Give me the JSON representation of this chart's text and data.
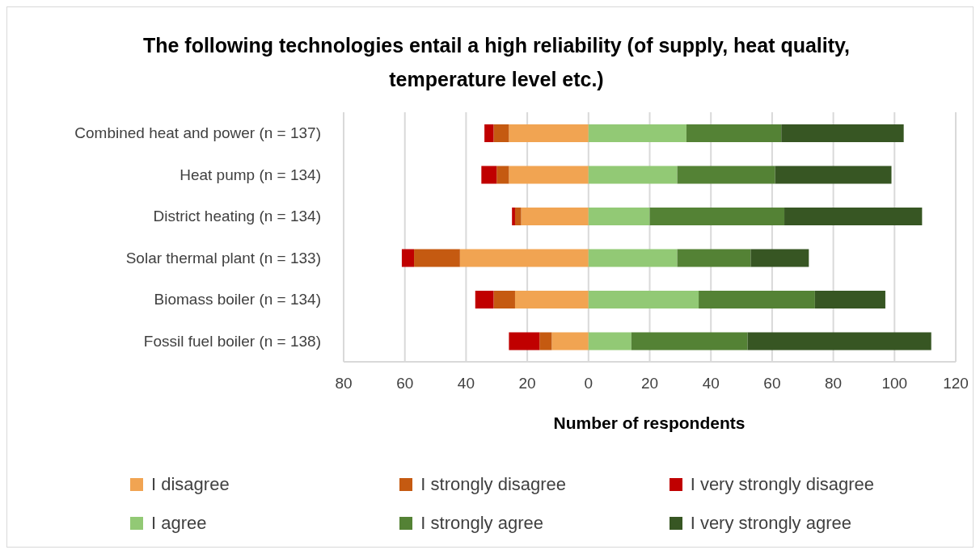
{
  "chart_data": {
    "type": "bar",
    "orientation": "horizontal",
    "stacked": true,
    "title": "The following technologies entail a high reliability (of supply, heat quality, temperature level etc.)",
    "xlabel": "Number of respondents",
    "categories": [
      "Combined heat and power (n = 137)",
      "Heat pump (n = 134)",
      "District heating  (n = 134)",
      "Solar thermal plant (n = 133)",
      "Biomass boiler  (n = 134)",
      "Fossil fuel boiler  (n = 138)"
    ],
    "series": [
      {
        "name": "I disagree",
        "color": "#f1a452",
        "values": [
          -26,
          -26,
          -22,
          -42,
          -24,
          -12
        ]
      },
      {
        "name": "I strongly disagree",
        "color": "#c55a11",
        "values": [
          -5,
          -4,
          -2,
          -15,
          -7,
          -4
        ]
      },
      {
        "name": "I very strongly disagree",
        "color": "#c00000",
        "values": [
          -3,
          -5,
          -1,
          -4,
          -6,
          -10
        ]
      },
      {
        "name": "I agree",
        "color": "#92c975",
        "values": [
          32,
          29,
          20,
          29,
          36,
          14
        ]
      },
      {
        "name": "I strongly agree",
        "color": "#548235",
        "values": [
          31,
          32,
          44,
          24,
          38,
          38
        ]
      },
      {
        "name": "I very strongly agree",
        "color": "#375623",
        "values": [
          40,
          38,
          45,
          19,
          23,
          60
        ]
      }
    ],
    "xlim": [
      -80,
      120
    ],
    "xticks": [
      {
        "value": -80,
        "label": "80"
      },
      {
        "value": -60,
        "label": "60"
      },
      {
        "value": -40,
        "label": "40"
      },
      {
        "value": -20,
        "label": "20"
      },
      0,
      20,
      40,
      60,
      80,
      100,
      120
    ],
    "grid": "x",
    "legend": "bottom"
  }
}
